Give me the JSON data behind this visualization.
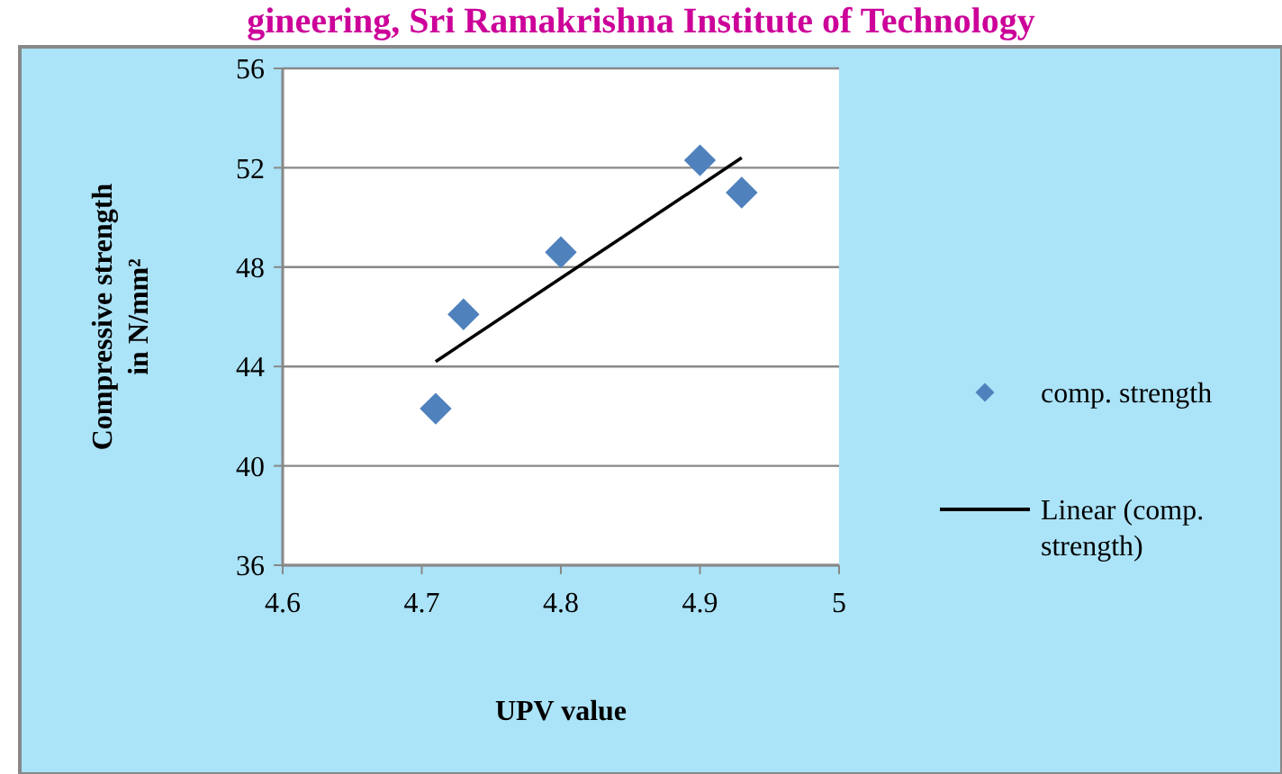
{
  "chart_data": {
    "type": "scatter",
    "title": "gineering, Sri Ramakrishna Institute of Technology",
    "xlabel": "UPV value",
    "ylabel": "Compressive strength\nin N/mm²",
    "series": [
      {
        "name": "comp. strength",
        "color": "#4f81bd",
        "x": [
          4.71,
          4.73,
          4.8,
          4.9,
          4.93
        ],
        "values": [
          42.3,
          46.1,
          48.6,
          52.3,
          51.0
        ],
        "marker": "diamond"
      },
      {
        "name": "Linear (comp. strength)",
        "type": "line",
        "color": "#000000",
        "x": [
          4.71,
          4.93
        ],
        "values": [
          44.2,
          52.4
        ],
        "marker": "none"
      }
    ],
    "xlim": [
      4.6,
      5
    ],
    "xticks": [
      4.6,
      4.7,
      4.8,
      4.9,
      5
    ],
    "ylim": [
      36,
      56
    ],
    "yticks": [
      36,
      40,
      44,
      48,
      52,
      56
    ],
    "grid": "y",
    "legend": "right"
  }
}
